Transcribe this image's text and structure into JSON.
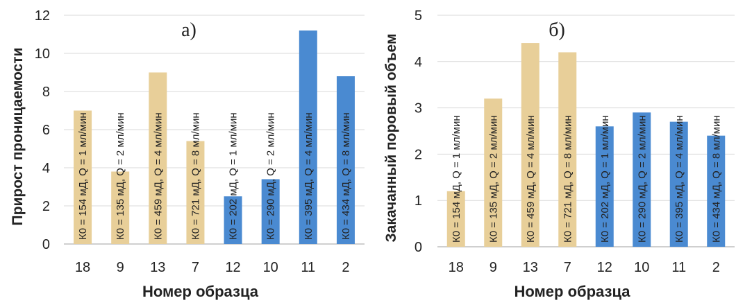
{
  "colors": {
    "tan": "#e8cf99",
    "blue": "#4a8ad1",
    "grid": "#d9d9d9",
    "axis": "#bfbfbf"
  },
  "chart_data": [
    {
      "type": "bar",
      "panel_label": "а)",
      "xlabel": "Номер образца",
      "ylabel": "Прирост проницаемости",
      "ylim": [
        0,
        12
      ],
      "yticks": [
        0,
        2,
        4,
        6,
        8,
        10,
        12
      ],
      "grid": true,
      "categories": [
        "18",
        "9",
        "13",
        "7",
        "12",
        "10",
        "11",
        "2"
      ],
      "values": [
        7.0,
        3.8,
        9.0,
        5.4,
        2.5,
        3.4,
        11.2,
        8.8
      ],
      "bar_labels": [
        "К0 = 154 мД, Q = 1 мл/мин",
        "К0 = 135 мД, Q = 2 мл/мин",
        "К0 = 459 мД, Q = 4 мл/мин",
        "К0 = 721 мД, Q = 8 мл/мин",
        "К0 = 202 мД, Q = 1 мл/мин",
        "К0 = 290 мД, Q = 2 мл/мин",
        "К0 = 395 мД, Q = 4 мл/мин",
        "К0 = 434 мД, Q = 8 мл/мин"
      ],
      "bar_colors": [
        "tan",
        "tan",
        "tan",
        "tan",
        "blue",
        "blue",
        "blue",
        "blue"
      ]
    },
    {
      "type": "bar",
      "panel_label": "б)",
      "xlabel": "Номер образца",
      "ylabel": "Закачанный поровый объем",
      "ylim": [
        0,
        5
      ],
      "yticks": [
        0,
        1,
        2,
        3,
        4,
        5
      ],
      "grid": true,
      "categories": [
        "18",
        "9",
        "13",
        "7",
        "12",
        "10",
        "11",
        "2"
      ],
      "values": [
        1.2,
        3.2,
        4.4,
        4.2,
        2.6,
        2.9,
        2.7,
        2.4
      ],
      "bar_labels": [
        "К0 = 154 мД, Q = 1 мл/мин",
        "К0 = 135 мД, Q = 2 мл/мин",
        "К0 = 459 мД, Q = 4 мл/мин",
        "К0 = 721 мД, Q = 8 мл/мин",
        "К0 = 202 мД, Q = 1 мл/мин",
        "К0 = 290 мД, Q = 2 мл/мин",
        "К0 = 395 мД, Q = 4 мл/мин",
        "К0 = 434 мД, Q = 8 мл/мин"
      ],
      "bar_colors": [
        "tan",
        "tan",
        "tan",
        "tan",
        "blue",
        "blue",
        "blue",
        "blue"
      ]
    }
  ]
}
